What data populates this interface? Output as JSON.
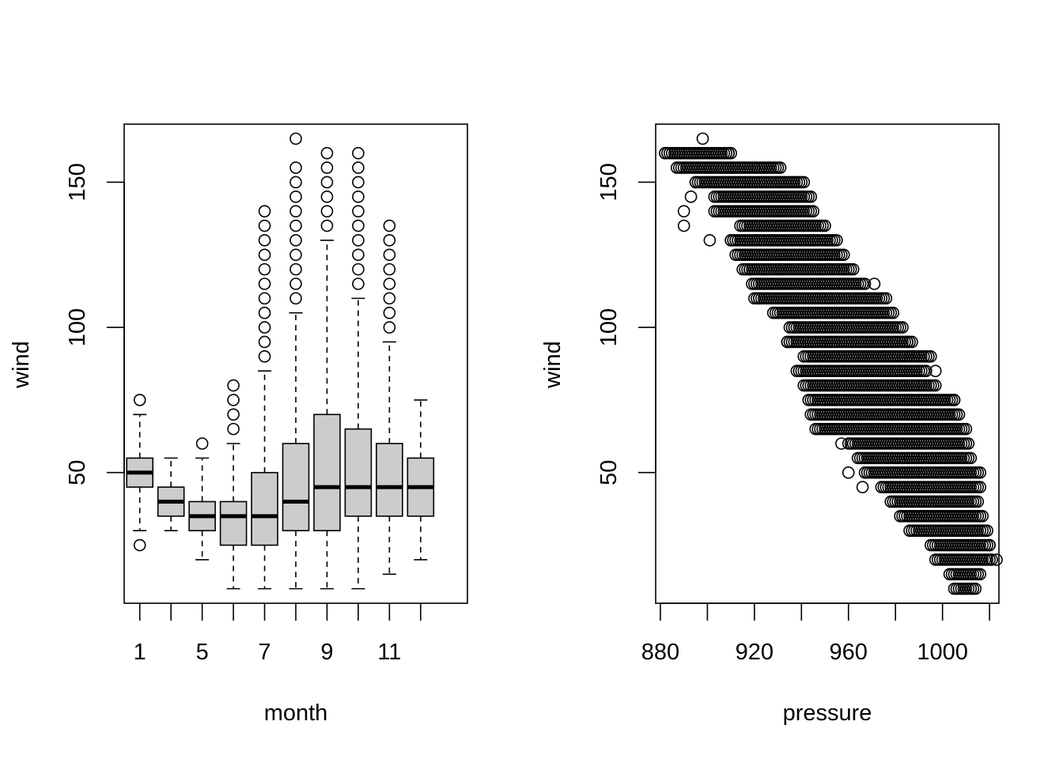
{
  "chart_data": [
    {
      "type": "boxplot",
      "title": "",
      "xlabel": "month",
      "ylabel": "wind",
      "ylim": [
        5,
        170
      ],
      "xlim": [
        0.5,
        11.5
      ],
      "grid": false,
      "box_fill": "#cccccc",
      "x_tick_labels": [
        "1",
        "5",
        "7",
        "9",
        "11"
      ],
      "x_tick_label_positions": [
        1,
        3,
        5,
        7,
        9
      ],
      "y_ticks": [
        50,
        100,
        150
      ],
      "y_tick_labels": [
        "50",
        "100",
        "150"
      ],
      "boxes": [
        {
          "month": "1",
          "q1": 45,
          "median": 50,
          "q3": 55,
          "whisker_low": 30,
          "whisker_high": 70,
          "outliers": [
            25,
            75
          ]
        },
        {
          "month": "4",
          "q1": 35,
          "median": 40,
          "q3": 45,
          "whisker_low": 30,
          "whisker_high": 55,
          "outliers": []
        },
        {
          "month": "5",
          "q1": 30,
          "median": 35,
          "q3": 40,
          "whisker_low": 20,
          "whisker_high": 55,
          "outliers": [
            60
          ]
        },
        {
          "month": "6",
          "q1": 25,
          "median": 35,
          "q3": 40,
          "whisker_low": 10,
          "whisker_high": 60,
          "outliers": [
            65,
            70,
            75,
            80
          ]
        },
        {
          "month": "7",
          "q1": 25,
          "median": 35,
          "q3": 50,
          "whisker_low": 10,
          "whisker_high": 85,
          "outliers": [
            90,
            95,
            100,
            105,
            110,
            115,
            120,
            125,
            130,
            135,
            140
          ]
        },
        {
          "month": "8",
          "q1": 30,
          "median": 40,
          "q3": 60,
          "whisker_low": 10,
          "whisker_high": 105,
          "outliers": [
            110,
            115,
            120,
            125,
            130,
            135,
            140,
            145,
            150,
            155,
            165
          ]
        },
        {
          "month": "9",
          "q1": 30,
          "median": 45,
          "q3": 70,
          "whisker_low": 10,
          "whisker_high": 130,
          "outliers": [
            135,
            140,
            145,
            150,
            155,
            160
          ]
        },
        {
          "month": "10",
          "q1": 35,
          "median": 45,
          "q3": 65,
          "whisker_low": 10,
          "whisker_high": 110,
          "outliers": [
            115,
            120,
            125,
            130,
            135,
            140,
            145,
            150,
            155,
            160
          ]
        },
        {
          "month": "11",
          "q1": 35,
          "median": 45,
          "q3": 60,
          "whisker_low": 15,
          "whisker_high": 95,
          "outliers": [
            100,
            105,
            110,
            115,
            120,
            125,
            130,
            135
          ]
        },
        {
          "month": "12",
          "q1": 35,
          "median": 45,
          "q3": 55,
          "whisker_low": 20,
          "whisker_high": 75,
          "outliers": []
        }
      ]
    },
    {
      "type": "scatter",
      "title": "",
      "xlabel": "pressure",
      "ylabel": "wind",
      "xlim": [
        878,
        1024
      ],
      "ylim": [
        5,
        170
      ],
      "grid": false,
      "marker": "open-circle",
      "x_ticks": [
        880,
        900,
        920,
        940,
        960,
        980,
        1000,
        1020
      ],
      "x_tick_labels": [
        "880",
        "",
        "920",
        "",
        "960",
        "",
        "1000",
        ""
      ],
      "y_ticks": [
        50,
        100,
        150
      ],
      "y_tick_labels": [
        "50",
        "100",
        "150"
      ],
      "wind_levels": [
        10,
        15,
        20,
        25,
        30,
        35,
        40,
        45,
        50,
        55,
        60,
        65,
        70,
        75,
        80,
        85,
        90,
        95,
        100,
        105,
        110,
        115,
        120,
        125,
        130,
        135,
        140,
        145,
        150,
        155,
        160,
        165
      ],
      "pressure_ranges": [
        [
          1005,
          1014
        ],
        [
          1003,
          1016
        ],
        [
          997,
          1021
        ],
        [
          995,
          1020
        ],
        [
          986,
          1019
        ],
        [
          982,
          1017
        ],
        [
          978,
          1015
        ],
        [
          974,
          1016
        ],
        [
          967,
          1016
        ],
        [
          964,
          1012
        ],
        [
          960,
          1011
        ],
        [
          946,
          1010
        ],
        [
          944,
          1007
        ],
        [
          943,
          1005
        ],
        [
          941,
          997
        ],
        [
          938,
          993
        ],
        [
          941,
          995
        ],
        [
          934,
          987
        ],
        [
          935,
          983
        ],
        [
          928,
          979
        ],
        [
          920,
          975
        ],
        [
          919,
          967
        ],
        [
          915,
          962
        ],
        [
          912,
          958
        ],
        [
          910,
          955
        ],
        [
          914,
          950
        ],
        [
          903,
          945
        ],
        [
          903,
          944
        ],
        [
          895,
          941
        ],
        [
          887,
          931
        ],
        [
          882,
          910
        ],
        [
          898,
          898
        ]
      ],
      "extra_points": [
        {
          "pressure": 890,
          "wind": 135
        },
        {
          "pressure": 890,
          "wind": 140
        },
        {
          "pressure": 901,
          "wind": 130
        },
        {
          "pressure": 910,
          "wind": 130
        },
        {
          "pressure": 893,
          "wind": 145
        },
        {
          "pressure": 895,
          "wind": 150
        },
        {
          "pressure": 909,
          "wind": 160
        },
        {
          "pressure": 882,
          "wind": 160
        },
        {
          "pressure": 888,
          "wind": 160
        },
        {
          "pressure": 934,
          "wind": 95
        },
        {
          "pressure": 937,
          "wind": 100
        },
        {
          "pressure": 985,
          "wind": 95
        },
        {
          "pressure": 990,
          "wind": 90
        },
        {
          "pressure": 997,
          "wind": 85
        },
        {
          "pressure": 1005,
          "wind": 75
        },
        {
          "pressure": 957,
          "wind": 60
        },
        {
          "pressure": 960,
          "wind": 50
        },
        {
          "pressure": 966,
          "wind": 45
        },
        {
          "pressure": 922,
          "wind": 110
        },
        {
          "pressure": 918,
          "wind": 120
        },
        {
          "pressure": 916,
          "wind": 125
        },
        {
          "pressure": 976,
          "wind": 110
        },
        {
          "pressure": 971,
          "wind": 115
        },
        {
          "pressure": 1023,
          "wind": 20
        },
        {
          "pressure": 1020,
          "wind": 25
        }
      ]
    }
  ]
}
